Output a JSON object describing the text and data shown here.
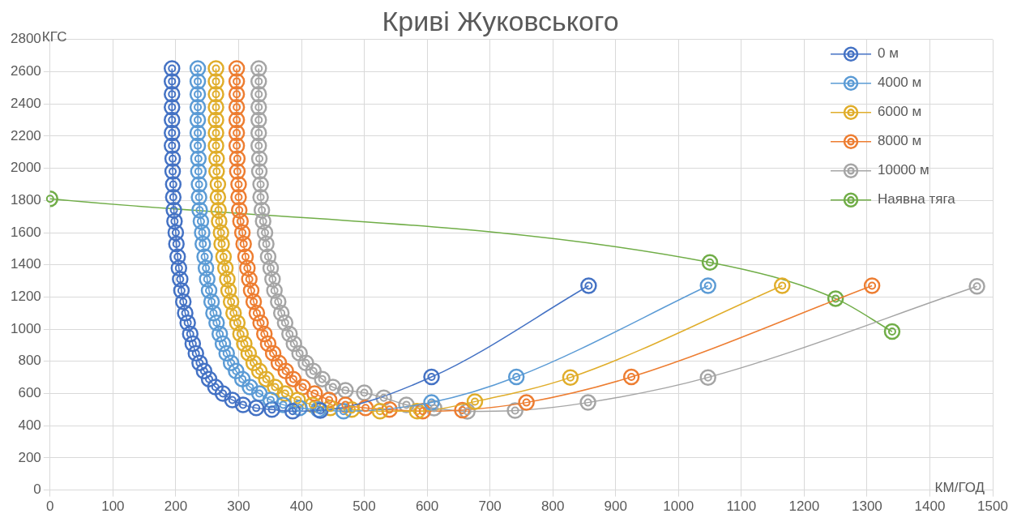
{
  "chart_data": {
    "type": "line",
    "title": "Криві Жуковського",
    "xlabel": "КМ/ГОД",
    "ylabel": "КГС",
    "xlim": [
      0,
      1500
    ],
    "xticks": [
      0,
      100,
      200,
      300,
      400,
      500,
      600,
      700,
      800,
      900,
      1000,
      1100,
      1200,
      1300,
      1400,
      1500
    ],
    "ylim": [
      0,
      2800
    ],
    "yticks": [
      0,
      200,
      400,
      600,
      800,
      1000,
      1200,
      1400,
      1600,
      1800,
      2000,
      2200,
      2400,
      2600,
      2800
    ],
    "grid": true,
    "legend": "top right",
    "marker": "circle",
    "line_style": "solid",
    "series": [
      {
        "name": "0 м",
        "color": "#4472c4",
        "x": [
          194,
          194,
          194,
          194,
          194,
          194,
          194,
          195,
          195,
          196,
          196,
          197,
          198,
          200,
          201,
          203,
          205,
          207,
          209,
          212,
          215,
          219,
          223,
          227,
          232,
          238,
          245,
          253,
          263,
          275,
          290,
          307,
          328,
          353,
          386,
          430,
          607,
          857
        ],
        "values": [
          2620,
          2540,
          2460,
          2380,
          2300,
          2220,
          2140,
          2060,
          1980,
          1900,
          1820,
          1740,
          1670,
          1600,
          1530,
          1450,
          1380,
          1310,
          1240,
          1170,
          1100,
          1040,
          970,
          910,
          850,
          790,
          740,
          690,
          640,
          600,
          560,
          530,
          510,
          500,
          490,
          494,
          703,
          1270
        ]
      },
      {
        "name": "4000 м",
        "color": "#5b9bd5",
        "x": [
          235,
          235,
          235,
          235,
          235,
          235,
          235,
          236,
          236,
          237,
          237,
          238,
          240,
          242,
          243,
          246,
          248,
          250,
          253,
          257,
          260,
          265,
          270,
          275,
          281,
          288,
          296,
          306,
          318,
          333,
          351,
          371,
          397,
          427,
          467,
          607,
          742,
          1047
        ],
        "values": [
          2620,
          2540,
          2460,
          2380,
          2300,
          2220,
          2140,
          2060,
          1980,
          1900,
          1820,
          1740,
          1670,
          1600,
          1530,
          1450,
          1380,
          1310,
          1240,
          1170,
          1100,
          1040,
          970,
          910,
          850,
          790,
          740,
          690,
          640,
          600,
          560,
          530,
          510,
          500,
          490,
          545,
          703,
          1270
        ]
      },
      {
        "name": "6000 м",
        "color": "#e0ad2a",
        "x": [
          264,
          264,
          264,
          264,
          264,
          264,
          264,
          265,
          265,
          267,
          267,
          268,
          269,
          272,
          273,
          276,
          279,
          282,
          284,
          288,
          292,
          298,
          303,
          309,
          316,
          324,
          333,
          344,
          358,
          374,
          394,
          418,
          446,
          480,
          525,
          584,
          676,
          828,
          1165
        ],
        "values": [
          2620,
          2540,
          2460,
          2380,
          2300,
          2220,
          2140,
          2060,
          1980,
          1900,
          1820,
          1740,
          1670,
          1600,
          1530,
          1450,
          1380,
          1310,
          1240,
          1170,
          1100,
          1040,
          970,
          910,
          850,
          790,
          740,
          690,
          640,
          600,
          560,
          530,
          510,
          500,
          490,
          490,
          550,
          700,
          1270
        ]
      },
      {
        "name": "8000 м",
        "color": "#ed7d31",
        "x": [
          297,
          297,
          297,
          297,
          297,
          297,
          297,
          298,
          298,
          300,
          300,
          301,
          303,
          306,
          308,
          311,
          314,
          317,
          320,
          324,
          329,
          335,
          341,
          347,
          355,
          364,
          375,
          387,
          402,
          421,
          444,
          470,
          502,
          540,
          593,
          656,
          758,
          925,
          1308
        ],
        "values": [
          2620,
          2540,
          2460,
          2380,
          2300,
          2220,
          2140,
          2060,
          1980,
          1900,
          1820,
          1740,
          1670,
          1600,
          1530,
          1450,
          1380,
          1310,
          1240,
          1170,
          1100,
          1040,
          970,
          910,
          850,
          790,
          740,
          690,
          640,
          600,
          560,
          530,
          510,
          500,
          490,
          497,
          544,
          703,
          1270
        ]
      },
      {
        "name": "10000 м",
        "color": "#a5a5a5",
        "x": [
          332,
          332,
          332,
          332,
          332,
          332,
          332,
          333,
          333,
          335,
          335,
          337,
          339,
          342,
          344,
          347,
          351,
          354,
          357,
          363,
          368,
          374,
          381,
          388,
          397,
          407,
          419,
          433,
          450,
          470,
          500,
          531,
          567,
          611,
          664,
          740,
          856,
          1047,
          1475
        ],
        "values": [
          2620,
          2540,
          2460,
          2380,
          2300,
          2220,
          2140,
          2060,
          1980,
          1900,
          1820,
          1740,
          1670,
          1600,
          1530,
          1450,
          1380,
          1310,
          1240,
          1170,
          1100,
          1040,
          970,
          910,
          850,
          790,
          740,
          690,
          640,
          620,
          605,
          574,
          530,
          509,
          489,
          494,
          544,
          700,
          1266
        ]
      },
      {
        "name": "Наявна тяга",
        "color": "#70ad47",
        "x": [
          0,
          1050,
          1250,
          1340
        ],
        "values": [
          1810,
          1415,
          1190,
          985
        ]
      }
    ]
  }
}
